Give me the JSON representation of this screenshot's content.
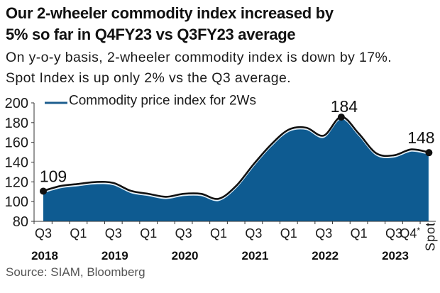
{
  "chart_data": {
    "type": "area",
    "title_lines": [
      "Our 2-wheeler commodity index increased by",
      "5% so far in Q4FY23 vs Q3FY23 average"
    ],
    "subtitle_lines": [
      "On y-o-y basis, 2-wheeler commodity index is down by 17%.",
      "Spot Index is up only 2% vs the Q3 average."
    ],
    "xlabel": "",
    "ylabel": "",
    "ylim": [
      80,
      200
    ],
    "y_ticks": [
      200,
      180,
      160,
      140,
      120,
      100,
      80
    ],
    "grid": false,
    "legend": {
      "entries": [
        "Commodity price index for 2Ws"
      ],
      "position": "top-left"
    },
    "categories": [
      "Q3 2018",
      "Q4 2018",
      "Q1 2019",
      "Q2 2019",
      "Q3 2019",
      "Q4 2019",
      "Q1 2020",
      "Q2 2020",
      "Q3 2020",
      "Q4 2020",
      "Q1 2021",
      "Q2 2021",
      "Q3 2021",
      "Q4 2021",
      "Q1 2022",
      "Q2 2022",
      "Q3 2022",
      "Q4 2022",
      "Q1 2023",
      "Q2 2023",
      "Q3 2023",
      "Q4 2023*",
      "Spot"
    ],
    "series": [
      {
        "name": "Commodity price index for 2Ws",
        "values": [
          109,
          114,
          116,
          118,
          117,
          109,
          106,
          103,
          106,
          106,
          101,
          114,
          136,
          156,
          171,
          173,
          165,
          184,
          167,
          147,
          145,
          151,
          148
        ],
        "fill_color": "#0e5b91",
        "line_color": "#111111",
        "edge_color": "#d6eaf7",
        "legend_color": "#1d5e8e"
      }
    ],
    "x_tick_labels": [
      {
        "category": "Q3 2018",
        "text": "Q3"
      },
      {
        "category": "Q1 2019",
        "text": "Q1"
      },
      {
        "category": "Q3 2019",
        "text": "Q3"
      },
      {
        "category": "Q1 2020",
        "text": "Q1"
      },
      {
        "category": "Q3 2020",
        "text": "Q3"
      },
      {
        "category": "Q1 2021",
        "text": "Q1"
      },
      {
        "category": "Q3 2021",
        "text": "Q3"
      },
      {
        "category": "Q1 2022",
        "text": "Q1"
      },
      {
        "category": "Q3 2022",
        "text": "Q3"
      },
      {
        "category": "Q1 2023",
        "text": "Q1"
      },
      {
        "category": "Q3 2023",
        "text": "Q3"
      },
      {
        "category": "Q4 2023*",
        "text": "Q4",
        "suffix": "*"
      },
      {
        "category": "Spot",
        "text": "Spot"
      }
    ],
    "year_labels": [
      {
        "category": "Q3 2018",
        "text": "2018"
      },
      {
        "category": "Q3 2019",
        "text": "2019"
      },
      {
        "category": "Q3 2020",
        "text": "2020"
      },
      {
        "category": "Q3 2021",
        "text": "2021"
      },
      {
        "category": "Q3 2022",
        "text": "2022"
      },
      {
        "category": "Q3 2023",
        "text": "2023"
      }
    ],
    "annotations": [
      {
        "category": "Q3 2018",
        "text": "109"
      },
      {
        "category": "Q4 2022",
        "text": "184"
      },
      {
        "category": "Spot",
        "text": "148"
      }
    ],
    "source": "Source: SIAM, Bloomberg"
  }
}
